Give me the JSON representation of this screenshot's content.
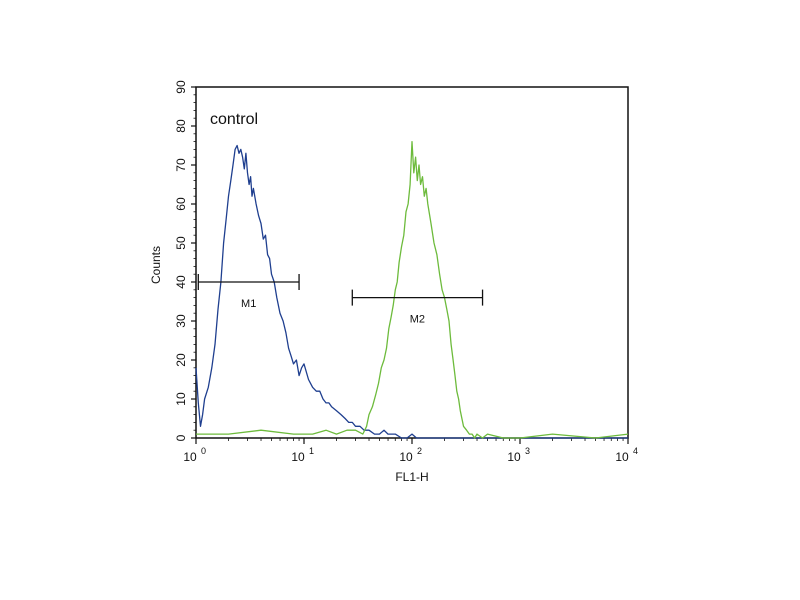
{
  "chart_data": {
    "type": "line",
    "title": "",
    "xlabel": "FL1-H",
    "ylabel": "Counts",
    "x_scale": "log",
    "xlim": [
      1,
      10000
    ],
    "ylim": [
      0,
      90
    ],
    "grid": false,
    "x_ticks": [
      {
        "base": "10",
        "exp": "0",
        "value": 1
      },
      {
        "base": "10",
        "exp": "1",
        "value": 10
      },
      {
        "base": "10",
        "exp": "2",
        "value": 100
      },
      {
        "base": "10",
        "exp": "3",
        "value": 1000
      },
      {
        "base": "10",
        "exp": "4",
        "value": 10000
      }
    ],
    "y_ticks": [
      "0",
      "10",
      "20",
      "30",
      "40",
      "50",
      "60",
      "70",
      "80",
      "90"
    ],
    "annotation": "control",
    "series": [
      {
        "color": "#1f3f8f",
        "x": [
          1.0,
          1.05,
          1.1,
          1.15,
          1.2,
          1.3,
          1.4,
          1.5,
          1.6,
          1.7,
          1.8,
          1.9,
          2.0,
          2.1,
          2.2,
          2.3,
          2.4,
          2.5,
          2.6,
          2.7,
          2.8,
          2.9,
          3.0,
          3.1,
          3.2,
          3.3,
          3.4,
          3.6,
          3.8,
          4.0,
          4.2,
          4.4,
          4.6,
          4.8,
          5.0,
          5.3,
          5.6,
          6.0,
          6.4,
          6.8,
          7.2,
          7.6,
          8.0,
          8.5,
          9.0,
          9.5,
          10,
          11,
          12,
          13,
          14,
          15,
          16,
          17,
          18,
          20,
          22,
          24,
          26,
          28,
          30,
          33,
          36,
          40,
          45,
          50,
          55,
          60,
          70,
          80,
          90,
          100,
          110,
          120,
          1000,
          10000
        ],
        "y": [
          18,
          9,
          3,
          6,
          10,
          13,
          18,
          24,
          33,
          40,
          50,
          56,
          62,
          66,
          70,
          74,
          75,
          73,
          74,
          72,
          69,
          73,
          68,
          65,
          67,
          62,
          64,
          60,
          57,
          55,
          51,
          52,
          47,
          46,
          42,
          40,
          36,
          32,
          30,
          27,
          23,
          21,
          19,
          20,
          16,
          18,
          19,
          15,
          13,
          12,
          12,
          10,
          9,
          9,
          8,
          7,
          6,
          5,
          4,
          4,
          3,
          3,
          2,
          2,
          1,
          1,
          2,
          1,
          1,
          0,
          0,
          1,
          0,
          0,
          0,
          0
        ]
      },
      {
        "color": "#6dbb3c",
        "x": [
          1.0,
          2.0,
          4.0,
          8.0,
          12,
          16,
          20,
          25,
          30,
          35,
          38,
          40,
          43,
          46,
          49,
          52,
          55,
          58,
          61,
          64,
          67,
          70,
          73,
          76,
          80,
          84,
          88,
          92,
          96,
          100,
          104,
          108,
          112,
          116,
          120,
          125,
          130,
          135,
          140,
          150,
          160,
          170,
          180,
          190,
          200,
          210,
          220,
          230,
          240,
          250,
          260,
          270,
          280,
          290,
          300,
          320,
          340,
          360,
          380,
          400,
          450,
          500,
          700,
          1000,
          2000,
          5000,
          10000
        ],
        "y": [
          1,
          1,
          2,
          1,
          1,
          2,
          1,
          2,
          2,
          1,
          3,
          6,
          8,
          11,
          14,
          18,
          20,
          23,
          28,
          31,
          34,
          38,
          40,
          45,
          49,
          52,
          58,
          60,
          65,
          76,
          68,
          72,
          66,
          70,
          65,
          67,
          62,
          64,
          60,
          55,
          50,
          47,
          42,
          38,
          36,
          33,
          30,
          24,
          20,
          16,
          12,
          10,
          7,
          5,
          3,
          2,
          1,
          1,
          0,
          1,
          0,
          1,
          0,
          0,
          1,
          0,
          1
        ]
      }
    ],
    "markers": [
      {
        "label": "M1",
        "x_start": 1.05,
        "x_end": 9.0,
        "y": 40
      },
      {
        "label": "M2",
        "x_start": 28,
        "x_end": 450,
        "y": 36
      }
    ]
  }
}
